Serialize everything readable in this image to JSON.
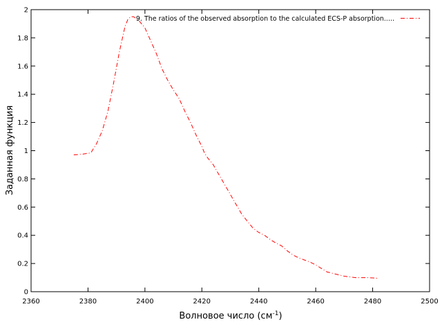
{
  "chart_data": {
    "type": "line",
    "xlabel": "Волновое число (см",
    "xlabel_sup": "-1",
    "xlabel_suffix": ")",
    "ylabel": "Заданная функция",
    "xlim": [
      2360,
      2500
    ],
    "ylim": [
      0,
      2
    ],
    "xticks": [
      "2360",
      "2380",
      "2400",
      "2420",
      "2440",
      "2460",
      "2480",
      "2500"
    ],
    "yticks": [
      "0",
      "0.2",
      "0.4",
      "0.6",
      "0.8",
      "1",
      "1.2",
      "1.4",
      "1.6",
      "1.8",
      "2"
    ],
    "grid": false,
    "legend_position": "top-right",
    "series": [
      {
        "name": "9. The ratios of the observed absorption to the calculated ECS-P absorption.....",
        "color": "#ff0000",
        "line_style": "dash-dot",
        "x": [
          2375,
          2378,
          2381,
          2383,
          2385,
          2387,
          2389,
          2391,
          2393,
          2394,
          2395,
          2396,
          2398,
          2400,
          2402,
          2404,
          2406,
          2408,
          2410,
          2412,
          2414,
          2416,
          2418,
          2420,
          2421,
          2422,
          2424,
          2426,
          2428,
          2430,
          2432,
          2434,
          2436,
          2438,
          2440,
          2442,
          2444,
          2446,
          2448,
          2450,
          2452,
          2454,
          2456,
          2458,
          2460,
          2462,
          2464,
          2466,
          2468,
          2470,
          2472,
          2474,
          2476,
          2478,
          2480,
          2482
        ],
        "y": [
          0.97,
          0.975,
          0.985,
          1.05,
          1.14,
          1.28,
          1.48,
          1.7,
          1.88,
          1.93,
          1.95,
          1.95,
          1.92,
          1.87,
          1.78,
          1.69,
          1.58,
          1.5,
          1.43,
          1.37,
          1.28,
          1.2,
          1.11,
          1.03,
          0.98,
          0.95,
          0.9,
          0.83,
          0.76,
          0.69,
          0.62,
          0.55,
          0.5,
          0.45,
          0.42,
          0.4,
          0.37,
          0.345,
          0.325,
          0.29,
          0.26,
          0.24,
          0.225,
          0.21,
          0.19,
          0.165,
          0.14,
          0.13,
          0.12,
          0.11,
          0.105,
          0.1,
          0.1,
          0.1,
          0.098,
          0.095
        ]
      }
    ]
  }
}
